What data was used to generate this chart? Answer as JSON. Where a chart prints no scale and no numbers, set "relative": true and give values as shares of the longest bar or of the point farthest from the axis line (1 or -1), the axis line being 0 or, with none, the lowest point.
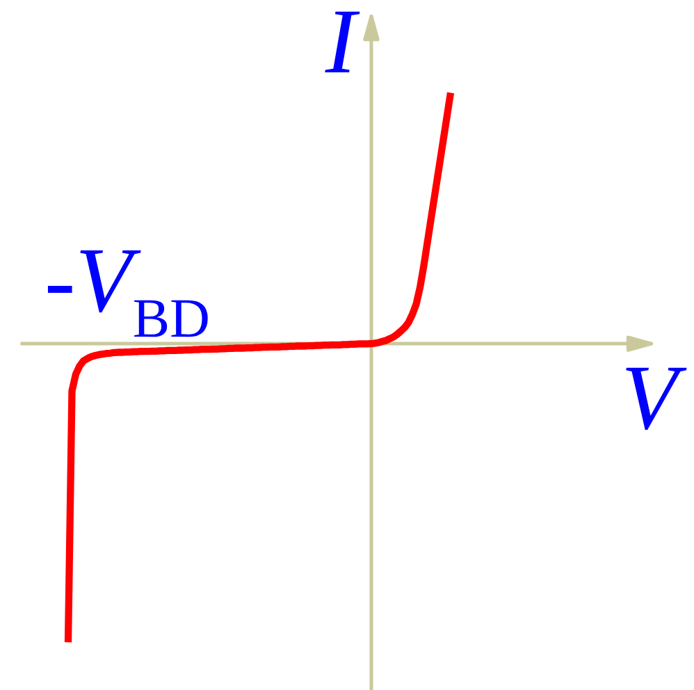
{
  "chart_data": {
    "type": "line",
    "relative": true,
    "xlabel": "V",
    "ylabel": "I",
    "line_style": "solid",
    "categories": [
      null,
      null,
      null,
      null,
      null,
      null,
      null,
      null,
      null,
      null,
      null,
      null,
      null,
      null,
      null,
      null,
      null,
      null,
      null,
      null,
      null,
      null,
      null,
      null,
      null,
      null,
      null,
      null,
      null,
      null,
      null,
      null,
      null,
      null,
      null,
      null,
      null,
      null,
      null,
      null,
      null,
      null,
      null,
      null,
      null,
      null,
      null,
      null,
      null,
      null,
      null,
      null,
      null,
      null,
      null,
      null,
      null,
      null,
      null,
      null,
      null,
      null,
      null,
      null,
      null,
      null,
      null,
      null,
      null,
      null,
      null,
      null,
      null,
      null,
      null,
      null,
      null,
      null,
      null,
      null,
      null,
      null,
      null,
      null,
      null,
      null,
      null,
      null,
      null,
      null,
      null,
      null,
      null,
      null,
      null,
      null,
      null,
      null,
      null,
      null,
      null
    ],
    "series": [
      {
        "color": "#ff0000",
        "values": [
          -1.0,
          -0.158,
          -0.102,
          -0.075,
          -0.058,
          -0.05,
          -0.044,
          -0.04,
          -0.037,
          -0.035,
          -0.033,
          -0.032,
          -0.03,
          -0.029,
          -0.029,
          -0.028,
          -0.028,
          -0.027,
          -0.027,
          -0.026,
          -0.026,
          -0.026,
          -0.025,
          -0.025,
          -0.024,
          -0.024,
          -0.023,
          -0.023,
          -0.023,
          -0.022,
          -0.022,
          -0.021,
          -0.021,
          -0.02,
          -0.02,
          -0.019,
          -0.019,
          -0.019,
          -0.018,
          -0.018,
          -0.017,
          -0.017,
          -0.016,
          -0.016,
          -0.015,
          -0.015,
          -0.015,
          -0.014,
          -0.014,
          -0.013,
          -0.013,
          -0.012,
          -0.012,
          -0.011,
          -0.011,
          -0.011,
          -0.01,
          -0.01,
          -0.009,
          -0.009,
          -0.008,
          -0.008,
          -0.008,
          -0.007,
          -0.007,
          -0.006,
          -0.006,
          -0.005,
          -0.005,
          -0.004,
          -0.004,
          -0.004,
          -0.003,
          -0.003,
          -0.002,
          -0.002,
          -0.001,
          -0.001,
          -0.001,
          0.0,
          0.001,
          0.003,
          0.007,
          0.01,
          0.016,
          0.022,
          0.031,
          0.042,
          0.054,
          0.071,
          0.098,
          0.132,
          0.188,
          0.262,
          0.345,
          0.428,
          0.51,
          0.592,
          0.675,
          0.757,
          0.84
        ]
      }
    ],
    "ref_lines": [
      {
        "axis": "y",
        "value": 0,
        "color": "#c9c99c"
      }
    ],
    "annotations": [
      "-V$_{BD}$"
    ]
  }
}
